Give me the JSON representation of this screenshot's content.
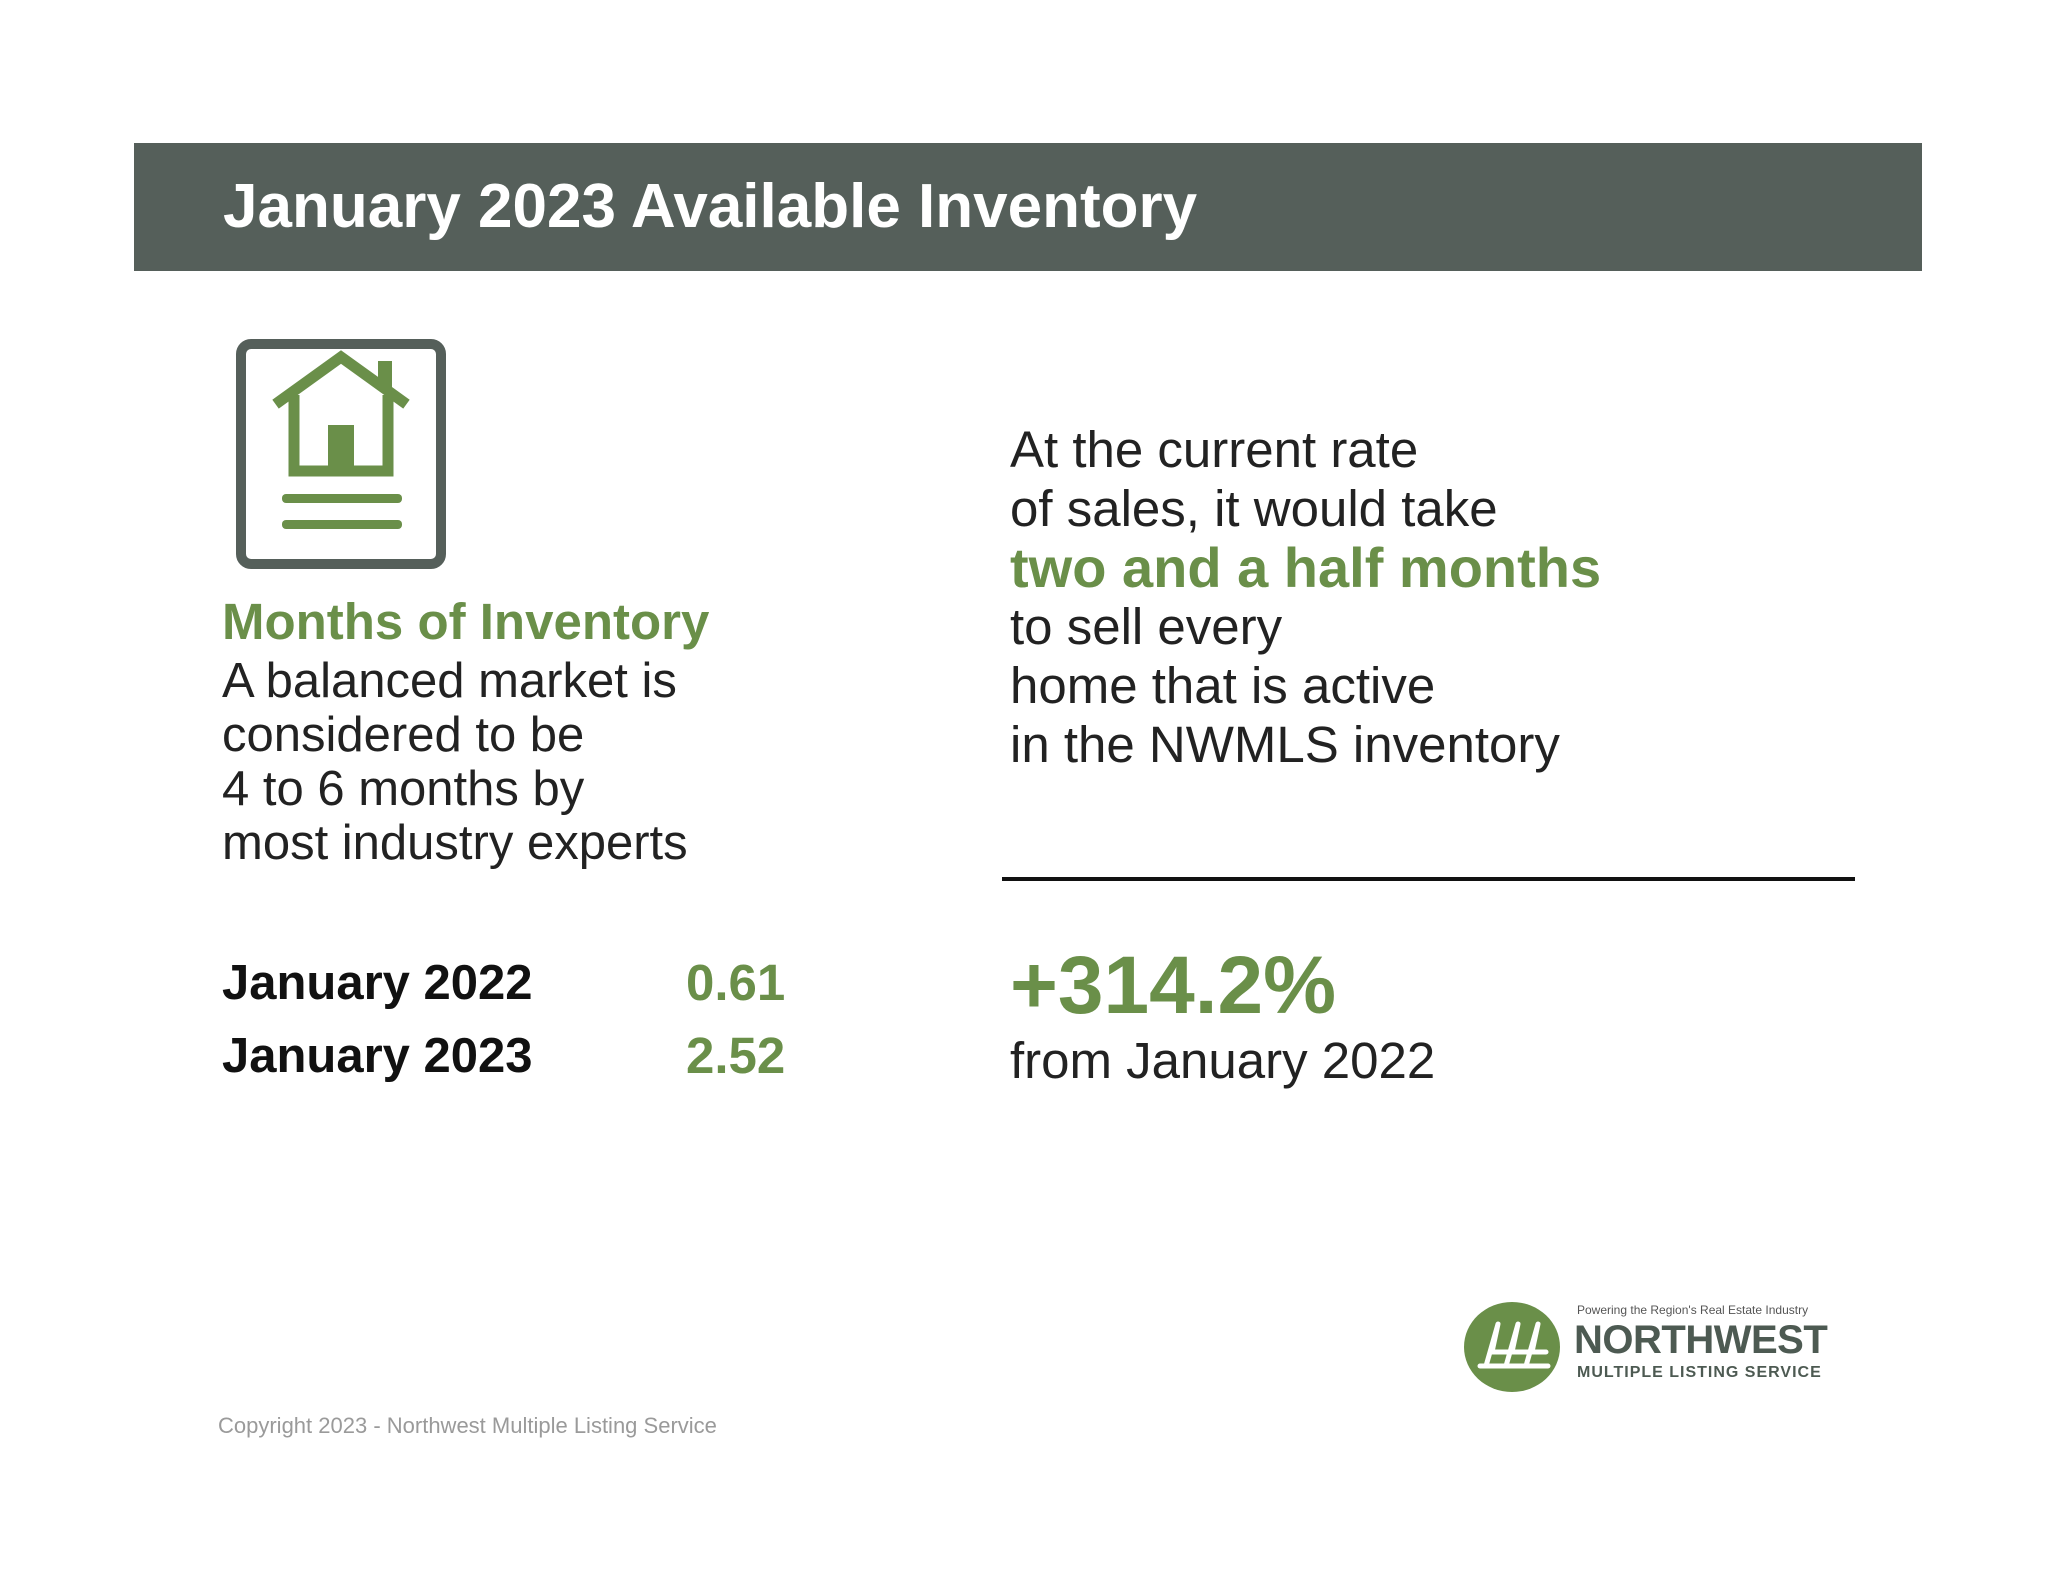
{
  "header": {
    "title": "January 2023 Available Inventory"
  },
  "months_of_inventory": {
    "icon": "house-card-icon",
    "heading": "Months of Inventory",
    "body_lines": [
      "A balanced market is",
      "considered to be",
      "4 to 6 months by",
      "most industry experts"
    ]
  },
  "stats": [
    {
      "label": "January 2022",
      "value": "0.61"
    },
    {
      "label": "January 2023",
      "value": "2.52"
    }
  ],
  "rate_text": {
    "line1": "At the current rate",
    "line2": "of sales, it would take",
    "highlight": "two and a half months",
    "line4": "to sell every",
    "line5": "home that is active",
    "line6": "in the NWMLS inventory"
  },
  "change": {
    "percent": "+314.2%",
    "note": "from January 2022"
  },
  "logo": {
    "icon": "nwmls-logo-icon",
    "tagline": "Powering the Region's Real Estate Industry",
    "name": "NORTHWEST",
    "subname": "MULTIPLE LISTING SERVICE"
  },
  "footer": {
    "copyright": "Copyright 2023 - Northwest Multiple Listing Service"
  },
  "colors": {
    "header_bg": "#555f5a",
    "accent_green": "#6a8f49",
    "text_dark": "#222222"
  }
}
